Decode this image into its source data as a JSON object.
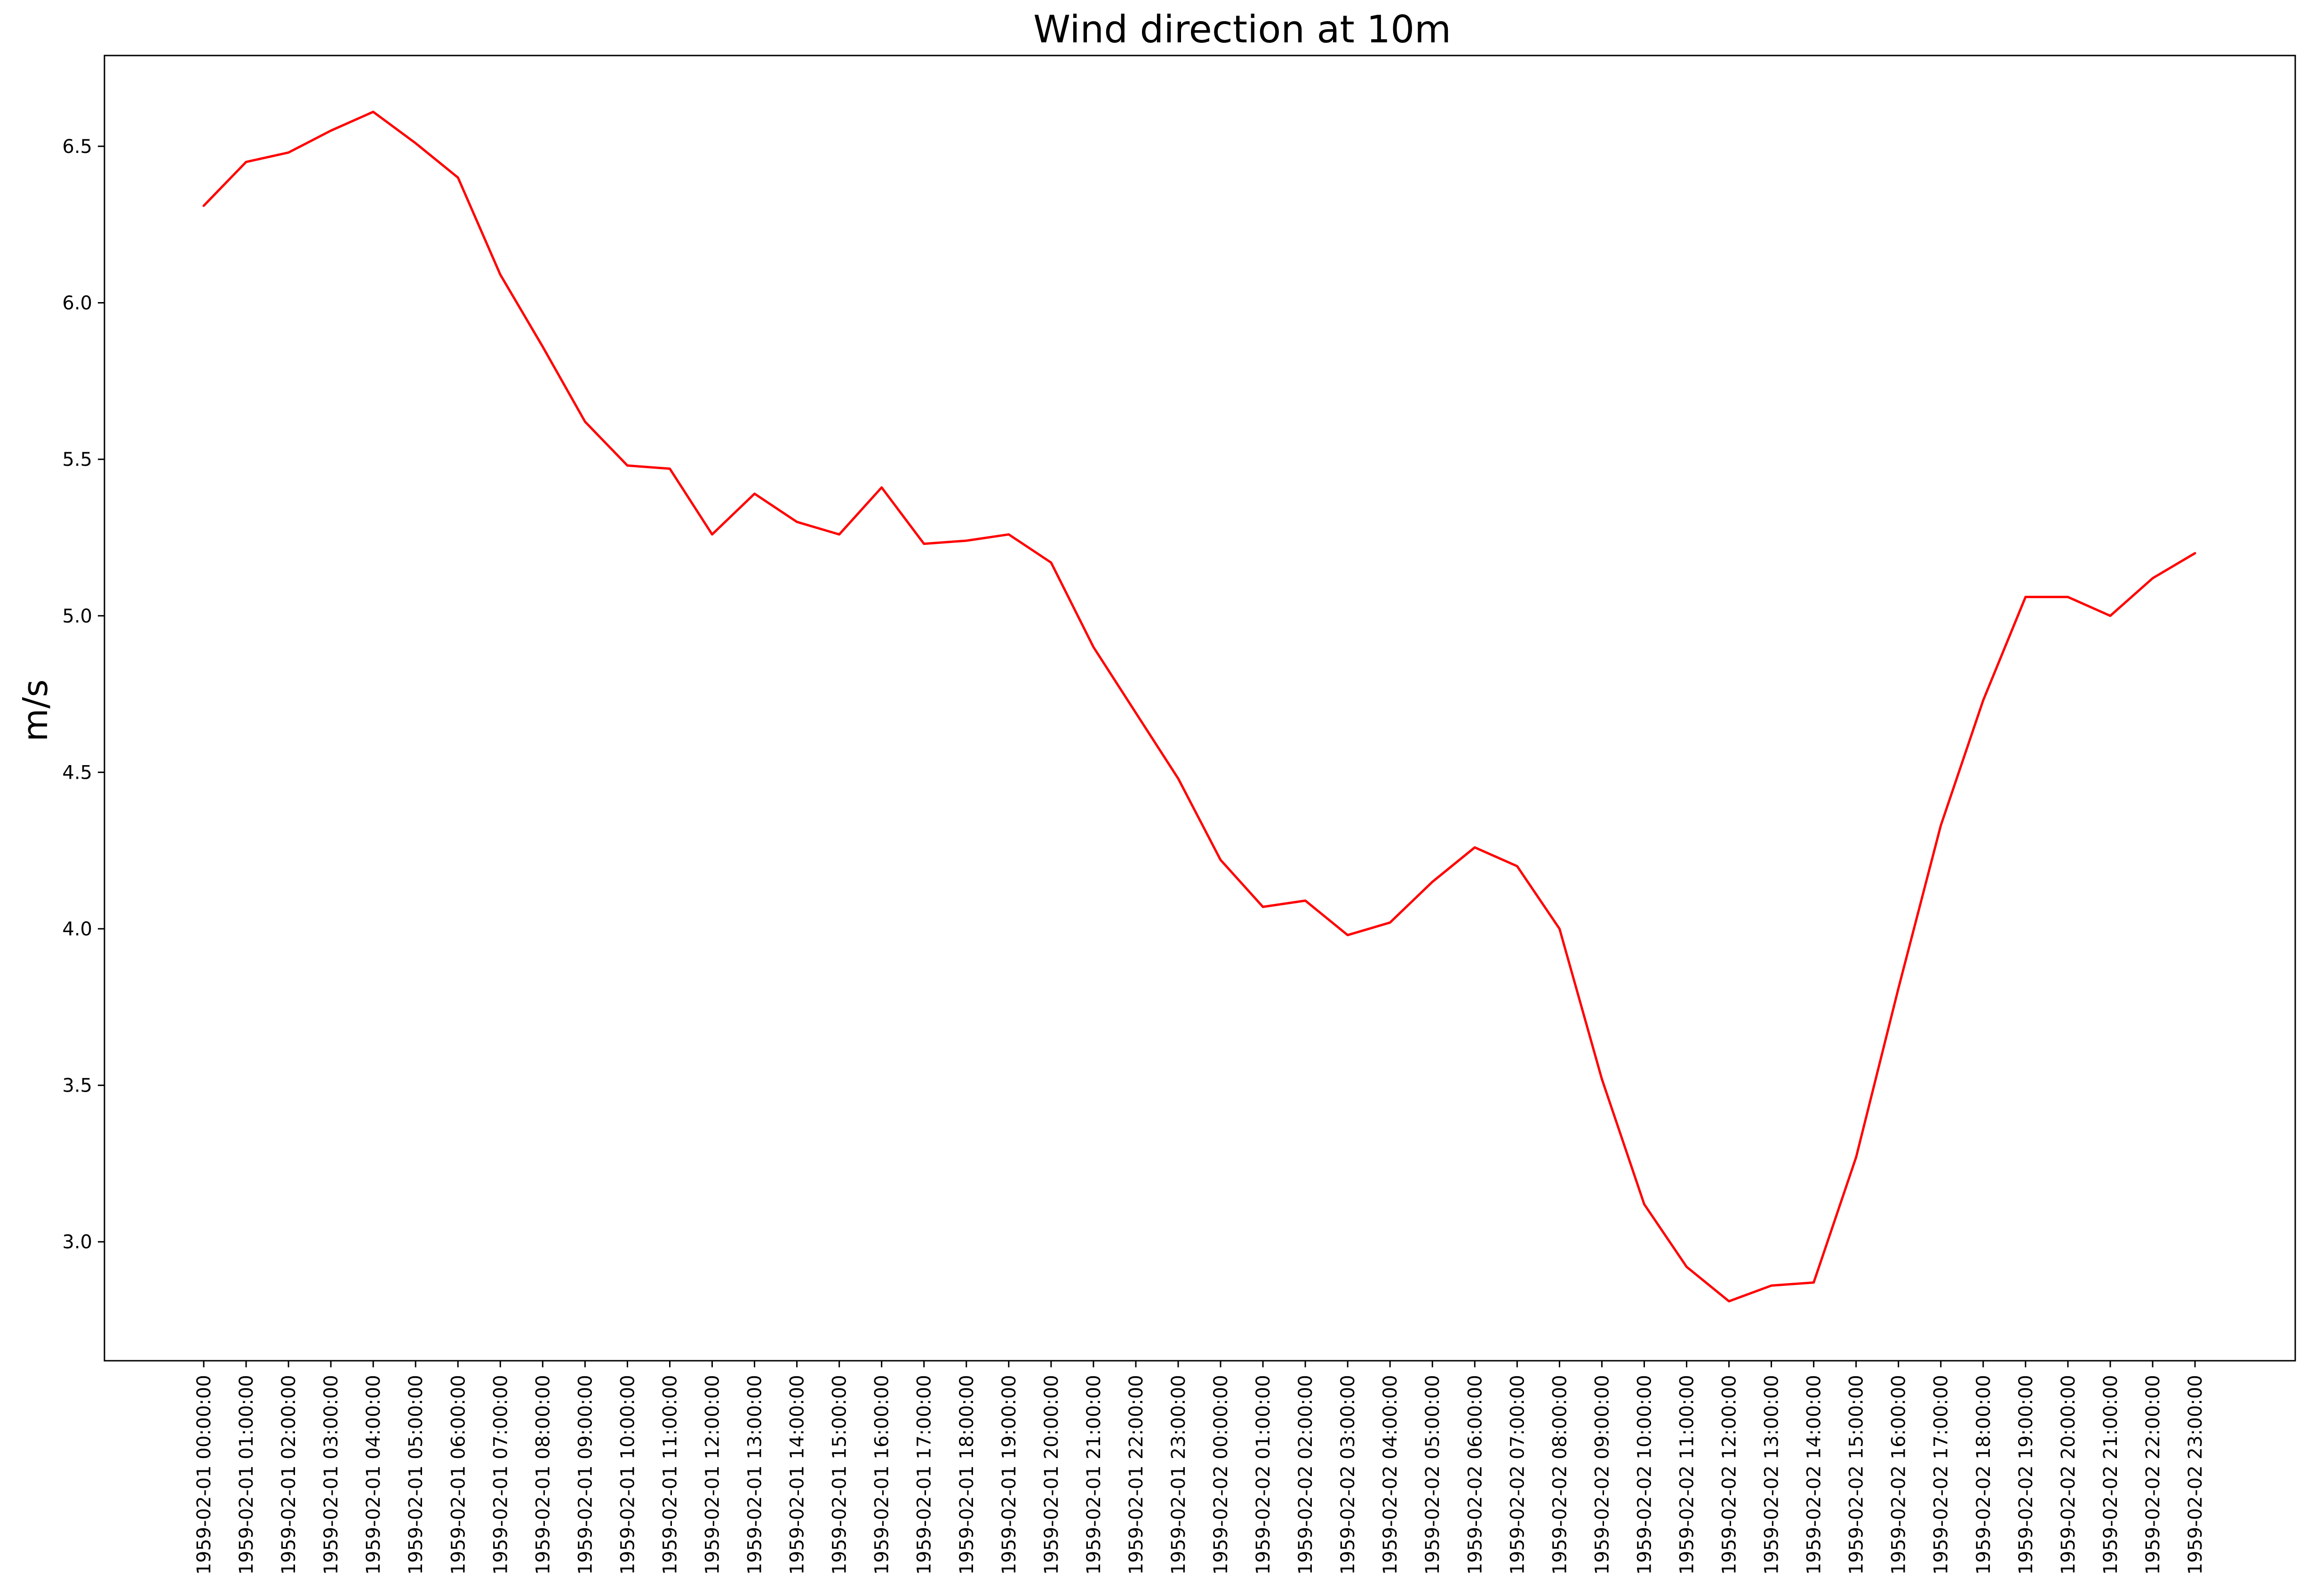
{
  "chart_data": {
    "type": "line",
    "title": "Wind direction at 10m",
    "xlabel": "",
    "ylabel": "m/s",
    "ylim": [
      2.62,
      6.79
    ],
    "yticks": [
      "3.0",
      "3.5",
      "4.0",
      "4.5",
      "5.0",
      "5.5",
      "6.0",
      "6.5"
    ],
    "grid": false,
    "line_color": "#ff0000",
    "x": [
      "1959-02-01 00:00:00",
      "1959-02-01 01:00:00",
      "1959-02-01 02:00:00",
      "1959-02-01 03:00:00",
      "1959-02-01 04:00:00",
      "1959-02-01 05:00:00",
      "1959-02-01 06:00:00",
      "1959-02-01 07:00:00",
      "1959-02-01 08:00:00",
      "1959-02-01 09:00:00",
      "1959-02-01 10:00:00",
      "1959-02-01 11:00:00",
      "1959-02-01 12:00:00",
      "1959-02-01 13:00:00",
      "1959-02-01 14:00:00",
      "1959-02-01 15:00:00",
      "1959-02-01 16:00:00",
      "1959-02-01 17:00:00",
      "1959-02-01 18:00:00",
      "1959-02-01 19:00:00",
      "1959-02-01 20:00:00",
      "1959-02-01 21:00:00",
      "1959-02-01 22:00:00",
      "1959-02-01 23:00:00",
      "1959-02-02 00:00:00",
      "1959-02-02 01:00:00",
      "1959-02-02 02:00:00",
      "1959-02-02 03:00:00",
      "1959-02-02 04:00:00",
      "1959-02-02 05:00:00",
      "1959-02-02 06:00:00",
      "1959-02-02 07:00:00",
      "1959-02-02 08:00:00",
      "1959-02-02 09:00:00",
      "1959-02-02 10:00:00",
      "1959-02-02 11:00:00",
      "1959-02-02 12:00:00",
      "1959-02-02 13:00:00",
      "1959-02-02 14:00:00",
      "1959-02-02 15:00:00",
      "1959-02-02 16:00:00",
      "1959-02-02 17:00:00",
      "1959-02-02 18:00:00",
      "1959-02-02 19:00:00",
      "1959-02-02 20:00:00",
      "1959-02-02 21:00:00",
      "1959-02-02 22:00:00",
      "1959-02-02 23:00:00"
    ],
    "y": [
      6.31,
      6.45,
      6.48,
      6.55,
      6.61,
      6.51,
      6.4,
      6.09,
      5.86,
      5.62,
      5.48,
      5.47,
      5.26,
      5.39,
      5.3,
      5.26,
      5.41,
      5.23,
      5.24,
      5.26,
      5.17,
      4.9,
      4.69,
      4.48,
      4.22,
      4.07,
      4.09,
      3.98,
      4.02,
      4.15,
      4.26,
      4.2,
      4.0,
      3.52,
      3.12,
      2.92,
      2.81,
      2.86,
      2.87,
      3.27,
      3.81,
      4.33,
      4.73,
      5.06,
      5.06,
      5.0,
      5.12,
      5.2
    ]
  }
}
